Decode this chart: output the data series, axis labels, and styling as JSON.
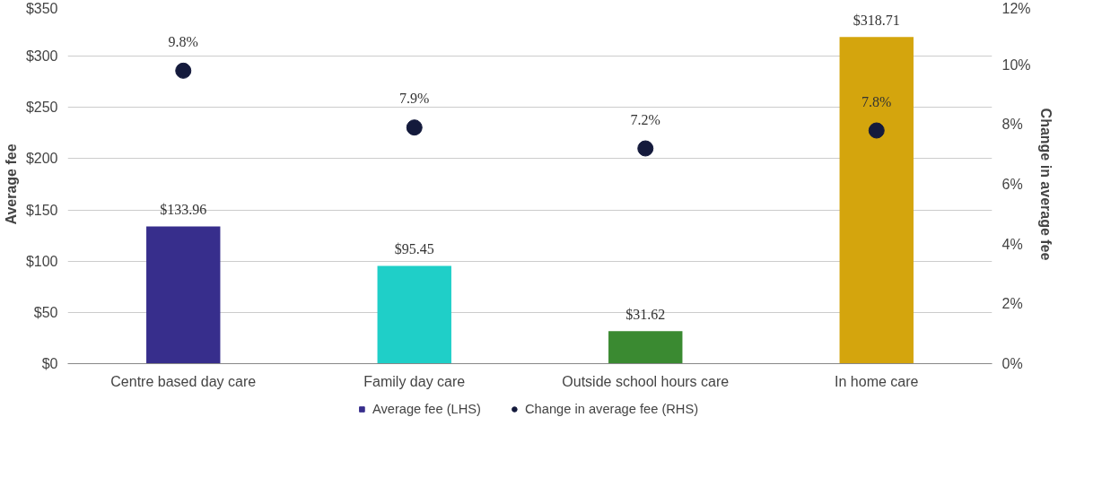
{
  "chart_data": {
    "type": "bar",
    "categories": [
      "Centre based day care",
      "Family day care",
      "Outside school hours care",
      "In home care"
    ],
    "ylabel": "Average fee",
    "y2label": "Change in average fee",
    "ylim": [
      0,
      350
    ],
    "yticks": [
      {
        "value": 0,
        "label": "$0"
      },
      {
        "value": 50,
        "label": "$50"
      },
      {
        "value": 100,
        "label": "$100"
      },
      {
        "value": 150,
        "label": "$150"
      },
      {
        "value": 200,
        "label": "$200"
      },
      {
        "value": 250,
        "label": "$250"
      },
      {
        "value": 300,
        "label": "$300"
      },
      {
        "value": 350,
        "label": "$350"
      }
    ],
    "y2lim": [
      0,
      12
    ],
    "y2ticks": [
      {
        "value": 0,
        "label": "0%"
      },
      {
        "value": 2,
        "label": "2%"
      },
      {
        "value": 4,
        "label": "4%"
      },
      {
        "value": 6,
        "label": "6%"
      },
      {
        "value": 8,
        "label": "8%"
      },
      {
        "value": 10,
        "label": "10%"
      },
      {
        "value": 12,
        "label": "12%"
      }
    ],
    "grid": "y",
    "legend": "bottom",
    "series": [
      {
        "name": "Average fee (LHS)",
        "color": "#372e8c",
        "colors": [
          "#372e8c",
          "#1fcfc8",
          "#3a8a31",
          "#d4a50d"
        ],
        "values": [
          133.96,
          95.45,
          31.62,
          318.71
        ],
        "value_labels": [
          "$133.96",
          "$95.45",
          "$31.62",
          "$318.71"
        ]
      },
      {
        "name": "Change in average fee (RHS)",
        "type": "scatter",
        "axis": "y2",
        "marker": "circle",
        "color": "#141a3c",
        "values": [
          9.8,
          7.9,
          7.2,
          7.8
        ],
        "value_labels": [
          "9.8%",
          "7.9%",
          "7.2%",
          "7.8%"
        ]
      }
    ]
  }
}
